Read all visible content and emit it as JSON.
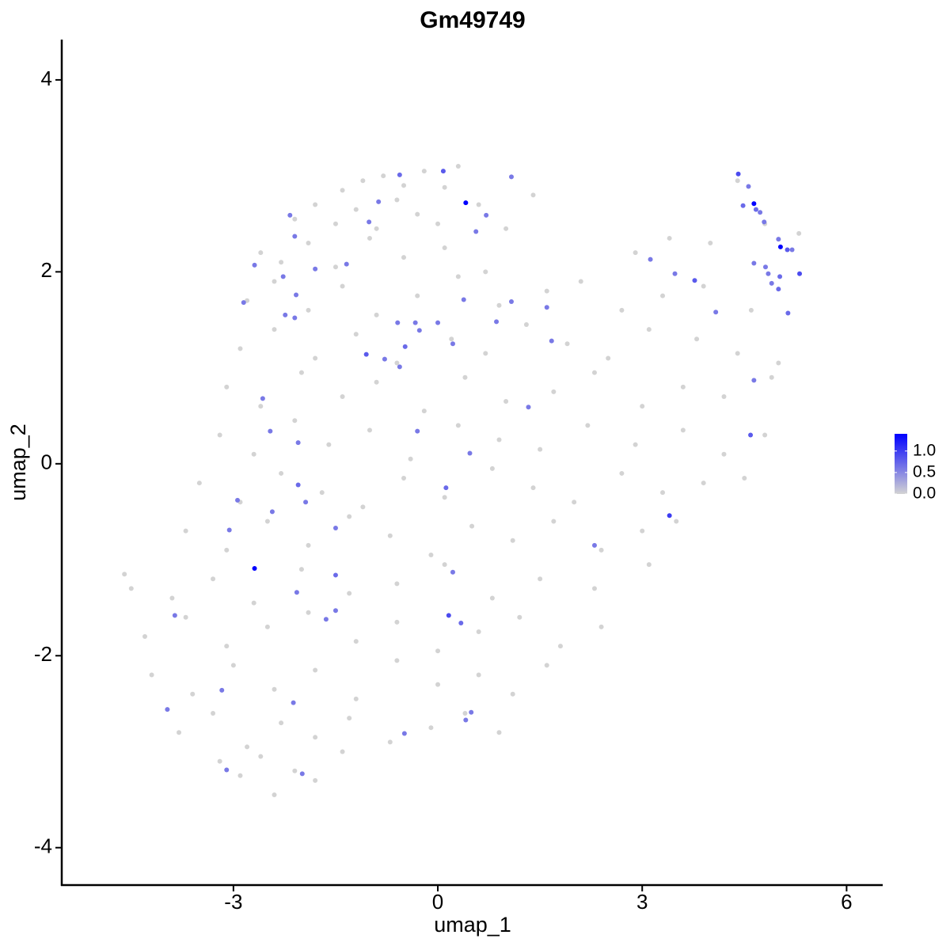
{
  "chart_data": {
    "type": "scatter",
    "title": "Gm49749",
    "x_label": "umap_1",
    "y_label": "umap_2",
    "xlim": [
      -5.52,
      6.53
    ],
    "ylim": [
      -4.39,
      4.42
    ],
    "xticks": [
      -3,
      0,
      3,
      6
    ],
    "yticks": [
      -4,
      -2,
      0,
      2,
      4
    ],
    "low_color": "#d3d3d3",
    "high_color": "#0000ff",
    "color_lim": [
      0,
      1.4
    ],
    "color_ticks": [
      {
        "value": 0,
        "label": "0.0"
      },
      {
        "value": 0.5,
        "label": "0.5"
      },
      {
        "value": 1,
        "label": "1.0"
      }
    ],
    "x": [
      -1.4,
      -1.1,
      -0.8,
      -0.5,
      -0.2,
      0.1,
      0.3,
      4.4,
      -2.1,
      -1.8,
      -1.5,
      -1.2,
      -0.9,
      -0.6,
      -0.3,
      0.0,
      0.6,
      1.0,
      1.4,
      4.8,
      -2.6,
      -2.3,
      -1.9,
      -1.5,
      -1.0,
      -0.5,
      0.1,
      0.7,
      2.9,
      3.4,
      4.0,
      5.3,
      -2.8,
      -2.4,
      -1.9,
      -1.4,
      -0.9,
      -0.3,
      0.3,
      0.9,
      1.6,
      2.1,
      2.7,
      3.3,
      3.9,
      4.6,
      -2.9,
      -2.4,
      -1.8,
      -1.2,
      -0.6,
      0.2,
      0.7,
      1.3,
      1.9,
      2.5,
      3.1,
      3.8,
      4.4,
      5.0,
      -3.1,
      -2.6,
      -2.0,
      -1.4,
      -0.9,
      -0.2,
      0.4,
      1.0,
      1.7,
      2.3,
      3.0,
      3.6,
      4.2,
      4.9,
      -3.2,
      -2.7,
      -2.1,
      -1.6,
      -1.0,
      -0.4,
      0.3,
      0.9,
      1.5,
      2.2,
      2.9,
      3.6,
      4.2,
      4.8,
      -3.5,
      -2.9,
      -2.3,
      -1.7,
      -1.1,
      -0.5,
      0.1,
      0.8,
      1.4,
      2.0,
      2.7,
      3.3,
      3.9,
      4.5,
      -3.7,
      -3.1,
      -2.5,
      -1.9,
      -1.3,
      -0.7,
      -0.1,
      0.5,
      1.1,
      1.7,
      2.4,
      3.0,
      3.5,
      -4.6,
      -4.5,
      -3.9,
      -3.3,
      -2.7,
      -2.0,
      -1.3,
      -0.6,
      0.1,
      0.8,
      1.5,
      2.3,
      3.1,
      -4.3,
      -3.7,
      -3.1,
      -2.5,
      -1.9,
      -1.2,
      -0.6,
      0.0,
      0.6,
      1.2,
      1.8,
      2.4,
      -4.2,
      -3.6,
      -3.0,
      -2.4,
      -1.8,
      -1.2,
      -0.6,
      0.0,
      0.6,
      1.1,
      1.6,
      -3.8,
      -3.3,
      -2.8,
      -2.3,
      -1.8,
      -1.3,
      -0.7,
      -0.1,
      0.4,
      0.9,
      -3.2,
      -2.9,
      -2.6,
      -2.4,
      -2.1,
      -1.8,
      -1.4,
      4.41,
      4.56,
      4.48,
      4.67,
      4.73,
      4.79,
      5.0,
      5.13,
      5.2,
      4.81,
      4.85,
      4.9,
      5.02,
      5.0,
      5.31,
      5.14,
      4.64,
      4.64,
      4.59,
      0.08,
      -0.56,
      -0.87,
      1.08,
      0.71,
      0.56,
      -1.01,
      -2.17,
      -2.1,
      -2.69,
      -1.8,
      -2.27,
      -1.34,
      -2.85,
      -2.08,
      -2.24,
      -2.1,
      0.38,
      1.08,
      1.6,
      3.12,
      3.48,
      3.77,
      4.08,
      -0.59,
      -0.33,
      0.0,
      0.86,
      -0.27,
      -0.48,
      0.22,
      -1.05,
      -0.78,
      -0.56,
      1.67,
      -2.57,
      1.33,
      -2.46,
      -0.3,
      -2.05,
      0.47,
      0.12,
      -2.05,
      -2.94,
      -1.94,
      -2.43,
      -3.06,
      -1.5,
      3.4,
      2.3,
      0.22,
      -1.5,
      -2.07,
      -1.5,
      -1.64,
      0.16,
      0.34,
      -3.86,
      -3.17,
      -2.12,
      -3.97,
      0.49,
      0.41,
      -0.49,
      -3.1,
      -1.99,
      4.64,
      5.03,
      0.41,
      -2.69
    ],
    "y": [
      2.85,
      2.95,
      3.0,
      2.9,
      3.05,
      2.88,
      3.1,
      2.95,
      2.55,
      2.7,
      2.5,
      2.65,
      2.45,
      2.75,
      2.6,
      2.5,
      2.7,
      2.45,
      2.8,
      2.5,
      2.2,
      2.1,
      2.3,
      2.05,
      2.35,
      2.15,
      2.25,
      2.0,
      2.2,
      2.35,
      2.3,
      2.4,
      1.7,
      1.9,
      1.6,
      1.85,
      1.55,
      1.75,
      1.95,
      1.65,
      1.8,
      1.9,
      1.6,
      1.75,
      1.85,
      1.6,
      1.2,
      1.4,
      1.1,
      1.35,
      1.05,
      1.3,
      1.15,
      1.45,
      1.25,
      1.1,
      1.4,
      1.3,
      1.15,
      1.05,
      0.8,
      0.6,
      0.95,
      0.7,
      0.85,
      0.55,
      0.9,
      0.65,
      0.75,
      0.95,
      0.6,
      0.8,
      0.7,
      0.9,
      0.3,
      0.1,
      0.45,
      0.2,
      0.35,
      0.05,
      0.4,
      0.25,
      0.15,
      0.4,
      0.2,
      0.35,
      0.1,
      0.3,
      -0.2,
      -0.4,
      -0.1,
      -0.3,
      -0.45,
      -0.15,
      -0.35,
      -0.05,
      -0.25,
      -0.4,
      -0.1,
      -0.3,
      -0.2,
      -0.15,
      -0.7,
      -0.9,
      -0.6,
      -0.85,
      -0.55,
      -0.75,
      -0.95,
      -0.65,
      -0.8,
      -0.6,
      -0.9,
      -0.7,
      -0.6,
      -1.15,
      -1.3,
      -1.4,
      -1.2,
      -1.45,
      -1.1,
      -1.35,
      -1.25,
      -1.05,
      -1.4,
      -1.2,
      -1.3,
      -1.05,
      -1.8,
      -1.6,
      -1.9,
      -1.7,
      -1.55,
      -1.85,
      -1.65,
      -1.95,
      -1.75,
      -1.6,
      -1.9,
      -1.7,
      -2.2,
      -2.4,
      -2.1,
      -2.35,
      -2.15,
      -2.45,
      -2.05,
      -2.3,
      -2.2,
      -2.4,
      -2.1,
      -2.8,
      -2.6,
      -2.95,
      -2.7,
      -2.85,
      -2.65,
      -2.9,
      -2.75,
      -2.6,
      -2.8,
      -3.1,
      -3.25,
      -3.05,
      -3.45,
      -3.2,
      -3.3,
      -3.0,
      3.02,
      2.89,
      2.69,
      2.65,
      2.62,
      2.52,
      2.34,
      2.23,
      2.23,
      2.05,
      1.98,
      1.88,
      1.95,
      1.82,
      1.98,
      1.57,
      2.09,
      0.87,
      0.3,
      3.05,
      3.01,
      2.73,
      2.99,
      2.59,
      2.42,
      2.52,
      2.59,
      2.37,
      2.07,
      2.03,
      1.95,
      2.08,
      1.68,
      1.76,
      1.55,
      1.52,
      1.71,
      1.69,
      1.63,
      2.13,
      1.98,
      1.91,
      1.58,
      1.47,
      1.47,
      1.47,
      1.48,
      1.39,
      1.22,
      1.25,
      1.14,
      1.09,
      1.01,
      1.28,
      0.68,
      0.59,
      0.34,
      0.34,
      0.22,
      0.11,
      -0.25,
      -0.22,
      -0.38,
      -0.4,
      -0.5,
      -0.69,
      -0.67,
      -0.54,
      -0.85,
      -1.13,
      -1.16,
      -1.34,
      -1.53,
      -1.62,
      -1.58,
      -1.66,
      -1.58,
      -2.36,
      -2.49,
      -2.56,
      -2.59,
      -2.67,
      -2.81,
      -3.19,
      -3.23,
      2.71,
      2.26,
      2.72,
      -1.09
    ],
    "expression": [
      0,
      0,
      0,
      0,
      0,
      0,
      0,
      0,
      0,
      0,
      0,
      0,
      0,
      0,
      0,
      0,
      0,
      0,
      0,
      0,
      0,
      0,
      0,
      0,
      0,
      0,
      0,
      0,
      0,
      0,
      0,
      0,
      0,
      0,
      0,
      0,
      0,
      0,
      0,
      0,
      0,
      0,
      0,
      0,
      0,
      0,
      0,
      0,
      0,
      0,
      0,
      0,
      0,
      0,
      0,
      0,
      0,
      0,
      0,
      0,
      0,
      0,
      0,
      0,
      0,
      0,
      0,
      0,
      0,
      0,
      0,
      0,
      0,
      0,
      0,
      0,
      0,
      0,
      0,
      0,
      0,
      0,
      0,
      0,
      0,
      0,
      0,
      0,
      0,
      0,
      0,
      0,
      0,
      0,
      0,
      0,
      0,
      0,
      0,
      0,
      0,
      0,
      0,
      0,
      0,
      0,
      0,
      0,
      0,
      0,
      0,
      0,
      0,
      0,
      0,
      0,
      0,
      0,
      0,
      0,
      0,
      0,
      0,
      0,
      0,
      0,
      0,
      0,
      0,
      0,
      0,
      0,
      0,
      0,
      0,
      0,
      0,
      0,
      0,
      0,
      0,
      0,
      0,
      0,
      0,
      0,
      0,
      0,
      0,
      0,
      0,
      0,
      0,
      0,
      0,
      0,
      0,
      0,
      0,
      0,
      0,
      0,
      0,
      0,
      0,
      0,
      0,
      0,
      0.9,
      0.6,
      0.7,
      0.7,
      0.6,
      0.6,
      0.6,
      0.8,
      0.6,
      0.6,
      0.6,
      0.6,
      0.7,
      0.7,
      0.9,
      0.7,
      0.6,
      0.6,
      0.8,
      0.8,
      0.7,
      0.6,
      0.6,
      0.6,
      0.6,
      0.6,
      0.6,
      0.6,
      0.6,
      0.6,
      0.6,
      0.6,
      0.6,
      0.6,
      0.6,
      0.6,
      0.6,
      0.6,
      0.6,
      0.6,
      0.6,
      0.8,
      0.6,
      0.6,
      0.6,
      0.6,
      0.6,
      0.6,
      0.7,
      0.6,
      0.8,
      0.6,
      0.6,
      0.6,
      0.6,
      0.6,
      0.6,
      0.6,
      0.6,
      0.6,
      0.7,
      0.7,
      0.6,
      0.6,
      0.6,
      0.6,
      0.6,
      1.0,
      0.6,
      0.6,
      0.7,
      0.6,
      0.6,
      0.6,
      0.9,
      0.7,
      0.6,
      0.6,
      0.6,
      0.6,
      0.6,
      0.6,
      0.6,
      0.6,
      0.6,
      1.4,
      1.4,
      1.4,
      1.4
    ]
  }
}
